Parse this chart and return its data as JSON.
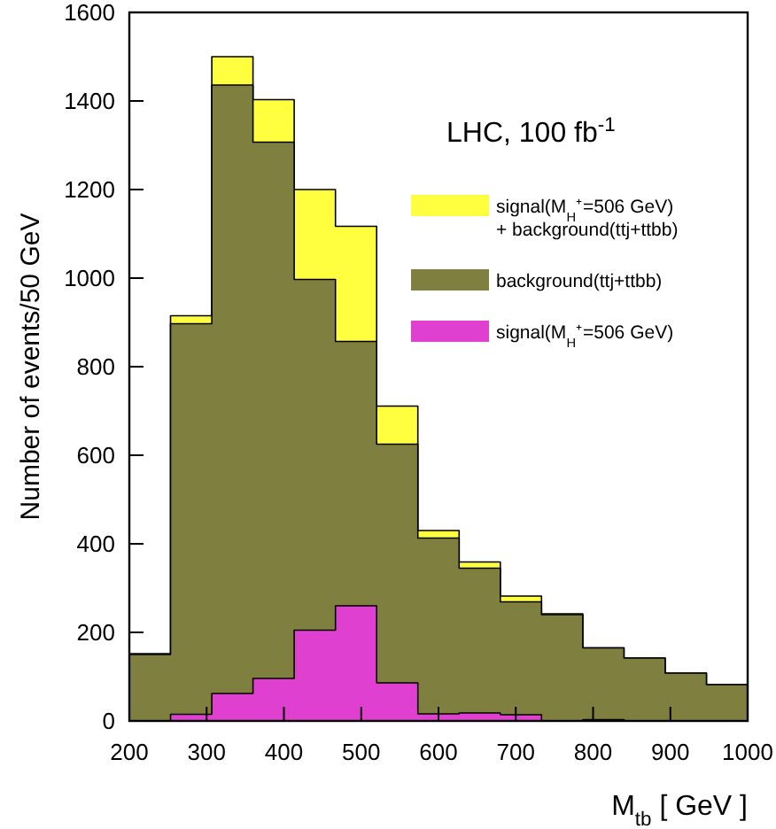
{
  "chart_data": {
    "type": "area",
    "xlabel": "M$_{tb}$ [ GeV ]",
    "ylabel": "Number of events/50 GeV",
    "annotations": [
      "LHC, 100 fb$^{-1}$"
    ],
    "x": [
      200,
      253.3,
      253.3,
      306.7,
      306.7,
      360,
      360,
      413.3,
      413.3,
      466.7,
      466.7,
      520,
      520,
      573.3,
      573.3,
      626.7,
      626.7,
      680,
      680,
      733.3,
      733.3,
      786.7,
      786.7,
      840,
      840,
      893.3,
      893.3,
      946.7,
      946.7,
      1000
    ],
    "series": [
      {
        "name": "signal(M$_{H}$⁺=506 GeV)\n+ background(ttj+ttbb)",
        "color": "#ffff40",
        "values": [
          152,
          152,
          915,
          915,
          1500,
          1500,
          1403,
          1403,
          1200,
          1200,
          1117,
          1117,
          711,
          711,
          430,
          430,
          359,
          359,
          282,
          282,
          242,
          242,
          165,
          165,
          142,
          142,
          108,
          108,
          82,
          82
        ]
      },
      {
        "name": "background(ttj+ttbb)",
        "color": "#7f7f40",
        "values": [
          150,
          150,
          897,
          897,
          1436,
          1436,
          1307,
          1307,
          997,
          997,
          857,
          857,
          625,
          625,
          413,
          413,
          345,
          345,
          269,
          269,
          240,
          240,
          165,
          165,
          142,
          142,
          108,
          108,
          82,
          82
        ]
      },
      {
        "name": "signal(M$_{H}$⁺=506 GeV)",
        "color": "#e040d0",
        "values": [
          0,
          0,
          15,
          15,
          62,
          62,
          96,
          96,
          205,
          205,
          260,
          260,
          86,
          86,
          16,
          16,
          18,
          18,
          14,
          14,
          0,
          0,
          3,
          3,
          0,
          0,
          0,
          0,
          0,
          0
        ]
      }
    ],
    "xlim": [
      200,
      1000
    ],
    "ylim": [
      0,
      1600
    ],
    "xticks": [
      200,
      300,
      400,
      500,
      600,
      700,
      800,
      900,
      1000
    ],
    "yticks": [
      0,
      200,
      400,
      600,
      800,
      1000,
      1200,
      1400,
      1600
    ],
    "legend": "top right"
  }
}
